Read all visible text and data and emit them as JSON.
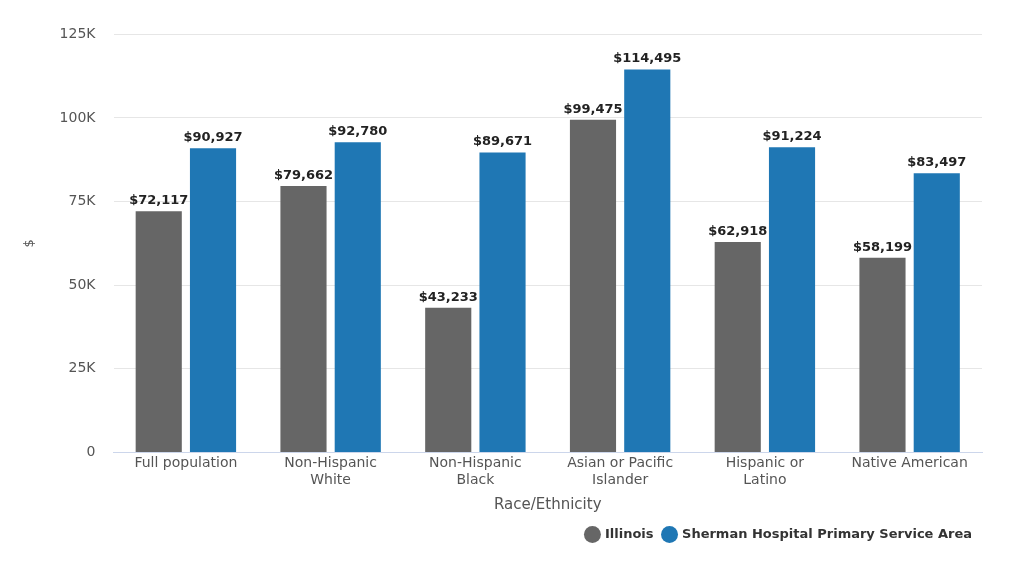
{
  "chart_data": {
    "type": "bar",
    "xlabel": "Race/Ethnicity",
    "ylabel": "$",
    "categories": [
      "Full population",
      "Non-Hispanic White",
      "Non-Hispanic Black",
      "Asian or Pacific Islander",
      "Hispanic or Latino",
      "Native American"
    ],
    "series": [
      {
        "name": "Illinois",
        "color": "#666666",
        "values": [
          72117,
          79662,
          43233,
          99475,
          62918,
          58199
        ],
        "value_labels": [
          "$72,117",
          "$79,662",
          "$43,233",
          "$99,475",
          "$62,918",
          "$58,199"
        ]
      },
      {
        "name": "Sherman Hospital Primary Service Area",
        "color": "#1f77b4",
        "values": [
          90927,
          92780,
          89671,
          114495,
          91224,
          83497
        ],
        "value_labels": [
          "$90,927",
          "$92,780",
          "$89,671",
          "$114,495",
          "$91,224",
          "$83,497"
        ]
      }
    ],
    "ylim": [
      0,
      125000
    ],
    "yticks": [
      {
        "value": 0,
        "label": "0"
      },
      {
        "value": 25000,
        "label": "25K"
      },
      {
        "value": 50000,
        "label": "50K"
      },
      {
        "value": 75000,
        "label": "75K"
      },
      {
        "value": 100000,
        "label": "100K"
      },
      {
        "value": 125000,
        "label": "125K"
      }
    ],
    "grid": "y",
    "legend": "bottom right"
  }
}
